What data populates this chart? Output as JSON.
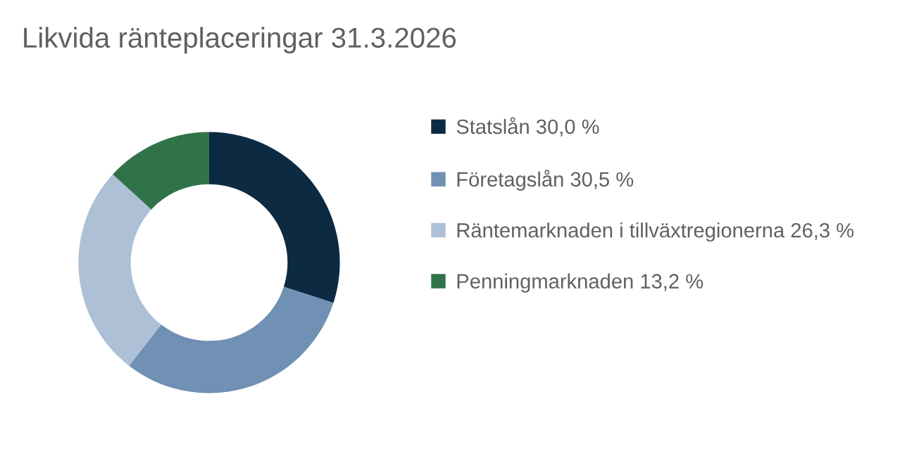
{
  "chart_data": {
    "type": "donut",
    "title": "Likvida ränteplaceringar 31.3.2026",
    "categories": [
      "Statslån",
      "Företagslån",
      "Räntemarknaden i tillväxtregionerna",
      "Penningmarknaden"
    ],
    "values": [
      30.0,
      30.5,
      26.3,
      13.2
    ],
    "value_labels": [
      "30,0 %",
      "30,5 %",
      "26,3 %",
      "13,2 %"
    ],
    "colors": [
      "#0c2a42",
      "#7090b4",
      "#adc0d5",
      "#317349"
    ],
    "legend": "right"
  }
}
